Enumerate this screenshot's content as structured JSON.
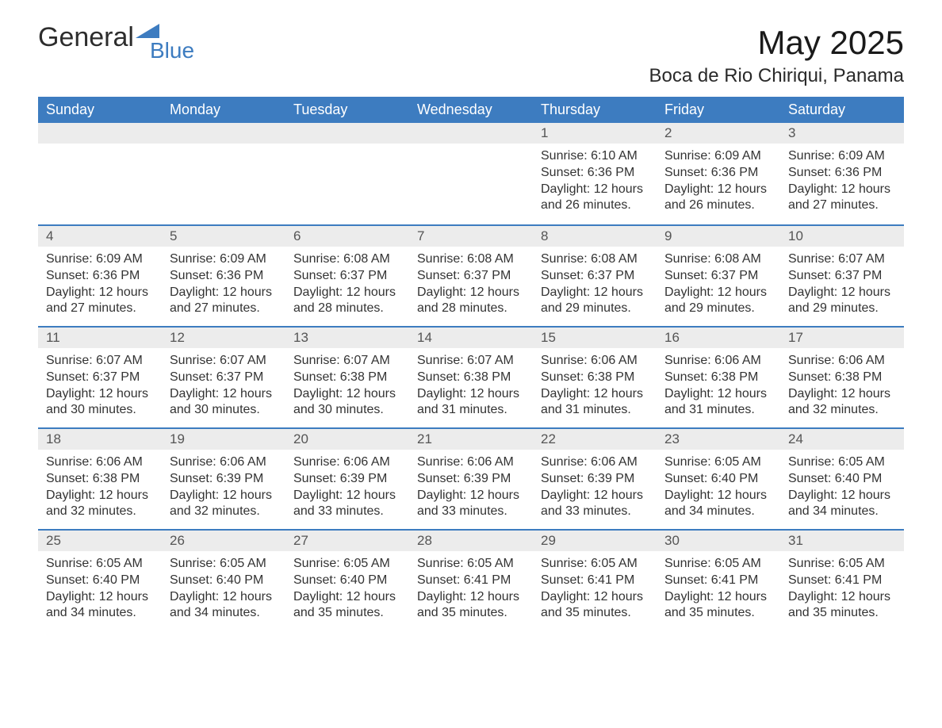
{
  "brand": {
    "main": "General",
    "sub": "Blue",
    "accent": "#3d7cc0"
  },
  "title": "May 2025",
  "location": "Boca de Rio Chiriqui, Panama",
  "colors": {
    "header_bg": "#3d7cc0",
    "header_text": "#ffffff",
    "daynum_bg": "#ececec",
    "daynum_text": "#555555",
    "row_border": "#3d7cc0",
    "body_text": "#333333",
    "page_bg": "#ffffff"
  },
  "weekdays": [
    "Sunday",
    "Monday",
    "Tuesday",
    "Wednesday",
    "Thursday",
    "Friday",
    "Saturday"
  ],
  "weeks": [
    [
      null,
      null,
      null,
      null,
      {
        "d": "1",
        "sr": "6:10 AM",
        "ss": "6:36 PM",
        "dl": "12 hours and 26 minutes."
      },
      {
        "d": "2",
        "sr": "6:09 AM",
        "ss": "6:36 PM",
        "dl": "12 hours and 26 minutes."
      },
      {
        "d": "3",
        "sr": "6:09 AM",
        "ss": "6:36 PM",
        "dl": "12 hours and 27 minutes."
      }
    ],
    [
      {
        "d": "4",
        "sr": "6:09 AM",
        "ss": "6:36 PM",
        "dl": "12 hours and 27 minutes."
      },
      {
        "d": "5",
        "sr": "6:09 AM",
        "ss": "6:36 PM",
        "dl": "12 hours and 27 minutes."
      },
      {
        "d": "6",
        "sr": "6:08 AM",
        "ss": "6:37 PM",
        "dl": "12 hours and 28 minutes."
      },
      {
        "d": "7",
        "sr": "6:08 AM",
        "ss": "6:37 PM",
        "dl": "12 hours and 28 minutes."
      },
      {
        "d": "8",
        "sr": "6:08 AM",
        "ss": "6:37 PM",
        "dl": "12 hours and 29 minutes."
      },
      {
        "d": "9",
        "sr": "6:08 AM",
        "ss": "6:37 PM",
        "dl": "12 hours and 29 minutes."
      },
      {
        "d": "10",
        "sr": "6:07 AM",
        "ss": "6:37 PM",
        "dl": "12 hours and 29 minutes."
      }
    ],
    [
      {
        "d": "11",
        "sr": "6:07 AM",
        "ss": "6:37 PM",
        "dl": "12 hours and 30 minutes."
      },
      {
        "d": "12",
        "sr": "6:07 AM",
        "ss": "6:37 PM",
        "dl": "12 hours and 30 minutes."
      },
      {
        "d": "13",
        "sr": "6:07 AM",
        "ss": "6:38 PM",
        "dl": "12 hours and 30 minutes."
      },
      {
        "d": "14",
        "sr": "6:07 AM",
        "ss": "6:38 PM",
        "dl": "12 hours and 31 minutes."
      },
      {
        "d": "15",
        "sr": "6:06 AM",
        "ss": "6:38 PM",
        "dl": "12 hours and 31 minutes."
      },
      {
        "d": "16",
        "sr": "6:06 AM",
        "ss": "6:38 PM",
        "dl": "12 hours and 31 minutes."
      },
      {
        "d": "17",
        "sr": "6:06 AM",
        "ss": "6:38 PM",
        "dl": "12 hours and 32 minutes."
      }
    ],
    [
      {
        "d": "18",
        "sr": "6:06 AM",
        "ss": "6:38 PM",
        "dl": "12 hours and 32 minutes."
      },
      {
        "d": "19",
        "sr": "6:06 AM",
        "ss": "6:39 PM",
        "dl": "12 hours and 32 minutes."
      },
      {
        "d": "20",
        "sr": "6:06 AM",
        "ss": "6:39 PM",
        "dl": "12 hours and 33 minutes."
      },
      {
        "d": "21",
        "sr": "6:06 AM",
        "ss": "6:39 PM",
        "dl": "12 hours and 33 minutes."
      },
      {
        "d": "22",
        "sr": "6:06 AM",
        "ss": "6:39 PM",
        "dl": "12 hours and 33 minutes."
      },
      {
        "d": "23",
        "sr": "6:05 AM",
        "ss": "6:40 PM",
        "dl": "12 hours and 34 minutes."
      },
      {
        "d": "24",
        "sr": "6:05 AM",
        "ss": "6:40 PM",
        "dl": "12 hours and 34 minutes."
      }
    ],
    [
      {
        "d": "25",
        "sr": "6:05 AM",
        "ss": "6:40 PM",
        "dl": "12 hours and 34 minutes."
      },
      {
        "d": "26",
        "sr": "6:05 AM",
        "ss": "6:40 PM",
        "dl": "12 hours and 34 minutes."
      },
      {
        "d": "27",
        "sr": "6:05 AM",
        "ss": "6:40 PM",
        "dl": "12 hours and 35 minutes."
      },
      {
        "d": "28",
        "sr": "6:05 AM",
        "ss": "6:41 PM",
        "dl": "12 hours and 35 minutes."
      },
      {
        "d": "29",
        "sr": "6:05 AM",
        "ss": "6:41 PM",
        "dl": "12 hours and 35 minutes."
      },
      {
        "d": "30",
        "sr": "6:05 AM",
        "ss": "6:41 PM",
        "dl": "12 hours and 35 minutes."
      },
      {
        "d": "31",
        "sr": "6:05 AM",
        "ss": "6:41 PM",
        "dl": "12 hours and 35 minutes."
      }
    ]
  ],
  "labels": {
    "sunrise": "Sunrise: ",
    "sunset": "Sunset: ",
    "daylight": "Daylight: "
  }
}
